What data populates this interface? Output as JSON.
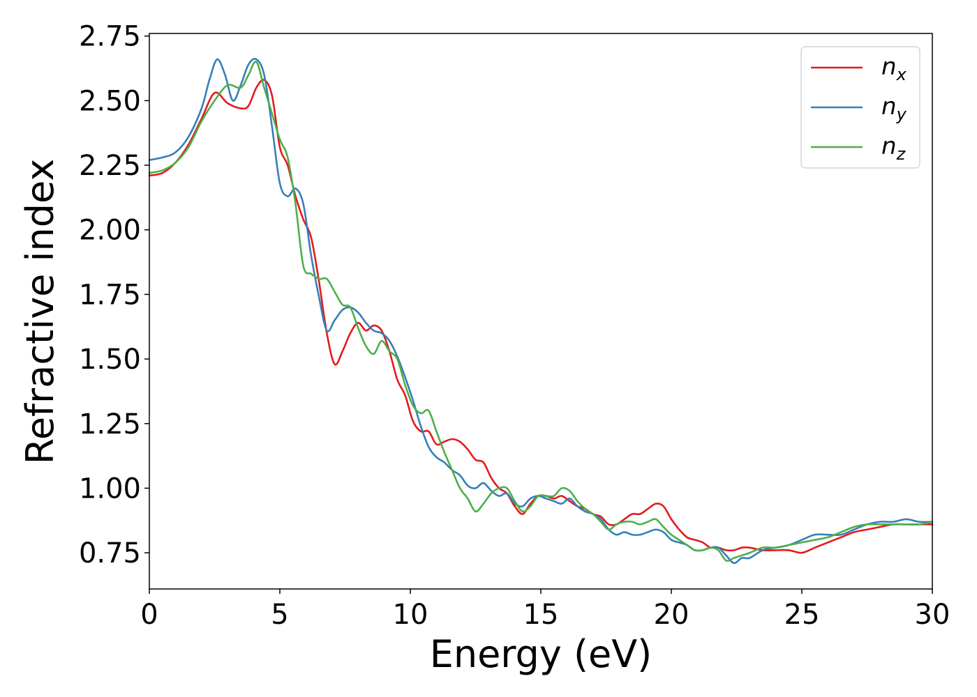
{
  "chart_data": {
    "type": "line",
    "xlabel": "Energy (eV)",
    "ylabel": "Refractive index",
    "xlim": [
      0,
      30
    ],
    "ylim": [
      0.61,
      2.76
    ],
    "xticks": [
      0,
      5,
      10,
      15,
      20,
      25,
      30
    ],
    "xtick_labels": [
      "0",
      "5",
      "10",
      "15",
      "20",
      "25",
      "30"
    ],
    "yticks": [
      0.75,
      1.0,
      1.25,
      1.5,
      1.75,
      2.0,
      2.25,
      2.5,
      2.75
    ],
    "ytick_labels": [
      "0.75",
      "1.00",
      "1.25",
      "1.50",
      "1.75",
      "2.00",
      "2.25",
      "2.50",
      "2.75"
    ],
    "grid": false,
    "legend_position": "top-right",
    "series": [
      {
        "name": "n",
        "subscript": "x",
        "color": "#e41a1c",
        "x": [
          0,
          0.5,
          1.0,
          1.5,
          2.0,
          2.5,
          3.0,
          3.5,
          3.8,
          4.1,
          4.4,
          4.7,
          5.0,
          5.3,
          5.6,
          5.9,
          6.2,
          6.5,
          6.8,
          7.1,
          7.4,
          7.7,
          8.0,
          8.3,
          8.6,
          8.9,
          9.2,
          9.5,
          9.8,
          10.1,
          10.4,
          10.7,
          11.0,
          11.3,
          11.6,
          11.9,
          12.2,
          12.5,
          12.8,
          13.1,
          13.4,
          13.7,
          14.0,
          14.3,
          14.6,
          14.9,
          15.2,
          15.5,
          15.8,
          16.1,
          16.4,
          16.7,
          17.0,
          17.3,
          17.6,
          17.9,
          18.2,
          18.5,
          18.8,
          19.1,
          19.4,
          19.7,
          20.0,
          20.3,
          20.6,
          20.9,
          21.2,
          21.5,
          21.8,
          22.1,
          22.4,
          22.7,
          23.0,
          23.5,
          24.0,
          24.5,
          25.0,
          25.5,
          26.0,
          26.5,
          27.0,
          27.5,
          28.0,
          28.5,
          29.0,
          29.5,
          30.0
        ],
        "values": [
          2.21,
          2.22,
          2.26,
          2.33,
          2.43,
          2.53,
          2.49,
          2.47,
          2.48,
          2.55,
          2.58,
          2.52,
          2.32,
          2.25,
          2.13,
          2.04,
          1.97,
          1.8,
          1.6,
          1.48,
          1.53,
          1.6,
          1.64,
          1.61,
          1.63,
          1.61,
          1.53,
          1.42,
          1.36,
          1.26,
          1.22,
          1.22,
          1.17,
          1.18,
          1.19,
          1.18,
          1.15,
          1.11,
          1.1,
          1.04,
          1.0,
          0.98,
          0.93,
          0.9,
          0.94,
          0.97,
          0.97,
          0.96,
          0.97,
          0.95,
          0.93,
          0.92,
          0.9,
          0.89,
          0.86,
          0.86,
          0.88,
          0.9,
          0.9,
          0.92,
          0.94,
          0.93,
          0.88,
          0.84,
          0.81,
          0.8,
          0.79,
          0.77,
          0.77,
          0.76,
          0.76,
          0.77,
          0.77,
          0.76,
          0.76,
          0.76,
          0.75,
          0.77,
          0.79,
          0.81,
          0.83,
          0.84,
          0.85,
          0.86,
          0.86,
          0.86,
          0.86
        ]
      },
      {
        "name": "n",
        "subscript": "y",
        "color": "#377eb8",
        "x": [
          0,
          0.5,
          1.0,
          1.5,
          2.0,
          2.3,
          2.6,
          2.9,
          3.2,
          3.5,
          3.8,
          4.1,
          4.4,
          4.7,
          5.0,
          5.3,
          5.6,
          5.9,
          6.2,
          6.5,
          6.8,
          7.1,
          7.4,
          7.7,
          8.0,
          8.3,
          8.6,
          8.9,
          9.2,
          9.5,
          9.8,
          10.1,
          10.4,
          10.7,
          11.0,
          11.3,
          11.6,
          11.9,
          12.2,
          12.5,
          12.8,
          13.1,
          13.4,
          13.7,
          14.0,
          14.3,
          14.6,
          14.9,
          15.2,
          15.5,
          15.8,
          16.1,
          16.4,
          16.7,
          17.0,
          17.3,
          17.6,
          17.9,
          18.2,
          18.5,
          18.8,
          19.1,
          19.4,
          19.7,
          20.0,
          20.3,
          20.6,
          20.9,
          21.2,
          21.5,
          21.8,
          22.1,
          22.4,
          22.7,
          23.0,
          23.5,
          24.0,
          24.5,
          25.0,
          25.5,
          26.0,
          26.5,
          27.0,
          27.5,
          28.0,
          28.5,
          29.0,
          29.5,
          30.0
        ],
        "values": [
          2.27,
          2.28,
          2.3,
          2.36,
          2.47,
          2.58,
          2.66,
          2.6,
          2.5,
          2.56,
          2.64,
          2.66,
          2.6,
          2.4,
          2.18,
          2.13,
          2.16,
          2.1,
          1.9,
          1.74,
          1.61,
          1.65,
          1.69,
          1.7,
          1.68,
          1.64,
          1.61,
          1.6,
          1.57,
          1.51,
          1.43,
          1.34,
          1.24,
          1.16,
          1.12,
          1.1,
          1.07,
          1.05,
          1.01,
          1.0,
          1.02,
          0.99,
          0.97,
          0.98,
          0.94,
          0.93,
          0.96,
          0.97,
          0.96,
          0.95,
          0.94,
          0.96,
          0.93,
          0.91,
          0.9,
          0.88,
          0.84,
          0.82,
          0.83,
          0.82,
          0.82,
          0.83,
          0.84,
          0.83,
          0.8,
          0.79,
          0.78,
          0.76,
          0.76,
          0.77,
          0.77,
          0.74,
          0.71,
          0.73,
          0.73,
          0.76,
          0.77,
          0.78,
          0.8,
          0.82,
          0.82,
          0.82,
          0.84,
          0.86,
          0.87,
          0.87,
          0.88,
          0.87,
          0.87
        ]
      },
      {
        "name": "n",
        "subscript": "z",
        "color": "#4daf4a",
        "x": [
          0,
          0.5,
          1.0,
          1.5,
          2.0,
          2.5,
          3.0,
          3.5,
          3.8,
          4.1,
          4.4,
          4.7,
          5.0,
          5.3,
          5.6,
          5.9,
          6.2,
          6.5,
          6.8,
          7.1,
          7.4,
          7.7,
          8.0,
          8.3,
          8.6,
          8.9,
          9.2,
          9.5,
          9.8,
          10.1,
          10.4,
          10.7,
          11.0,
          11.3,
          11.6,
          11.9,
          12.2,
          12.5,
          12.8,
          13.1,
          13.4,
          13.7,
          14.0,
          14.3,
          14.6,
          14.9,
          15.2,
          15.5,
          15.8,
          16.1,
          16.4,
          16.7,
          17.0,
          17.3,
          17.6,
          17.9,
          18.2,
          18.5,
          18.8,
          19.1,
          19.4,
          19.7,
          20.0,
          20.3,
          20.6,
          20.9,
          21.2,
          21.5,
          21.8,
          22.1,
          22.4,
          22.7,
          23.0,
          23.5,
          24.0,
          24.5,
          25.0,
          25.5,
          26.0,
          26.5,
          27.0,
          27.5,
          28.0,
          28.5,
          29.0,
          29.5,
          30.0
        ],
        "values": [
          2.22,
          2.23,
          2.26,
          2.32,
          2.42,
          2.5,
          2.56,
          2.55,
          2.6,
          2.65,
          2.55,
          2.45,
          2.35,
          2.28,
          2.1,
          1.86,
          1.83,
          1.81,
          1.81,
          1.76,
          1.71,
          1.7,
          1.62,
          1.55,
          1.52,
          1.57,
          1.53,
          1.5,
          1.4,
          1.32,
          1.29,
          1.3,
          1.22,
          1.14,
          1.07,
          1.0,
          0.96,
          0.91,
          0.94,
          0.98,
          1.0,
          1.0,
          0.95,
          0.91,
          0.93,
          0.97,
          0.97,
          0.97,
          1.0,
          0.99,
          0.95,
          0.92,
          0.9,
          0.87,
          0.84,
          0.86,
          0.87,
          0.87,
          0.86,
          0.87,
          0.88,
          0.85,
          0.82,
          0.8,
          0.78,
          0.76,
          0.76,
          0.77,
          0.76,
          0.72,
          0.73,
          0.74,
          0.75,
          0.77,
          0.77,
          0.78,
          0.79,
          0.8,
          0.81,
          0.83,
          0.85,
          0.86,
          0.86,
          0.86,
          0.86,
          0.86,
          0.87
        ]
      }
    ]
  }
}
